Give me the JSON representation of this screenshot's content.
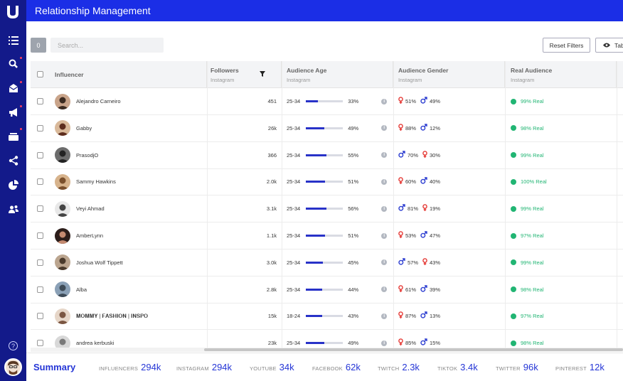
{
  "app": {
    "title": "Relationship Management"
  },
  "toolbar": {
    "count": "0",
    "search_placeholder": "Search...",
    "reset_label": "Reset Filters",
    "table_label": "Tab"
  },
  "columns": {
    "influencer": "Influencer",
    "followers": "Followers",
    "followers_sub": "Instagram",
    "age": "Audience Age",
    "age_sub": "Instagram",
    "gender": "Audience Gender",
    "gender_sub": "Instagram",
    "real": "Real Audience",
    "real_sub": "Instagram"
  },
  "rows": [
    {
      "name": "Alejandro Carneiro",
      "followers": "451",
      "age_range": "25-34",
      "age_pct": "33%",
      "age_value": 33,
      "g1": "female",
      "g1_pct": "51%",
      "g2": "male",
      "g2_pct": "49%",
      "real": "99% Real"
    },
    {
      "name": "Gabby",
      "followers": "26k",
      "age_range": "25-34",
      "age_pct": "49%",
      "age_value": 49,
      "g1": "female",
      "g1_pct": "88%",
      "g2": "male",
      "g2_pct": "12%",
      "real": "98% Real"
    },
    {
      "name": "PrasodjO",
      "followers": "366",
      "age_range": "25-34",
      "age_pct": "55%",
      "age_value": 55,
      "g1": "male",
      "g1_pct": "70%",
      "g2": "female",
      "g2_pct": "30%",
      "real": "99% Real"
    },
    {
      "name": "Sammy Hawkins",
      "followers": "2.0k",
      "age_range": "25-34",
      "age_pct": "51%",
      "age_value": 51,
      "g1": "female",
      "g1_pct": "60%",
      "g2": "male",
      "g2_pct": "40%",
      "real": "100% Real"
    },
    {
      "name": "Veyi Ahmad",
      "followers": "3.1k",
      "age_range": "25-34",
      "age_pct": "56%",
      "age_value": 56,
      "g1": "male",
      "g1_pct": "81%",
      "g2": "female",
      "g2_pct": "19%",
      "real": "99% Real"
    },
    {
      "name": "AmberLynn",
      "followers": "1.1k",
      "age_range": "25-34",
      "age_pct": "51%",
      "age_value": 51,
      "g1": "female",
      "g1_pct": "53%",
      "g2": "male",
      "g2_pct": "47%",
      "real": "97% Real"
    },
    {
      "name": "Joshua Wolf Tippett",
      "followers": "3.0k",
      "age_range": "25-34",
      "age_pct": "45%",
      "age_value": 45,
      "g1": "male",
      "g1_pct": "57%",
      "g2": "female",
      "g2_pct": "43%",
      "real": "99% Real"
    },
    {
      "name": "Alba",
      "followers": "2.8k",
      "age_range": "25-34",
      "age_pct": "44%",
      "age_value": 44,
      "g1": "female",
      "g1_pct": "61%",
      "g2": "male",
      "g2_pct": "39%",
      "real": "98% Real"
    },
    {
      "name": "𝐌𝐎𝐌𝐌𝐘 | 𝐅𝐀𝐒𝐇𝐈𝐎𝐍 | 𝐈𝐍𝐒𝐏𝐎",
      "followers": "15k",
      "age_range": "18-24",
      "age_pct": "43%",
      "age_value": 43,
      "g1": "female",
      "g1_pct": "87%",
      "g2": "male",
      "g2_pct": "13%",
      "real": "97% Real"
    },
    {
      "name": "andrea kerbuski",
      "followers": "23k",
      "age_range": "25-34",
      "age_pct": "49%",
      "age_value": 49,
      "g1": "female",
      "g1_pct": "85%",
      "g2": "male",
      "g2_pct": "15%",
      "real": "98% Real"
    }
  ],
  "summary": {
    "title": "Summary",
    "stats": [
      {
        "label": "INFLUENCERS",
        "value": "294k"
      },
      {
        "label": "INSTAGRAM",
        "value": "294k"
      },
      {
        "label": "YOUTUBE",
        "value": "34k"
      },
      {
        "label": "FACEBOOK",
        "value": "62k"
      },
      {
        "label": "TWITCH",
        "value": "2.3k"
      },
      {
        "label": "TIKTOK",
        "value": "3.4k"
      },
      {
        "label": "TWITTER",
        "value": "96k"
      },
      {
        "label": "PINTEREST",
        "value": "12k"
      }
    ]
  },
  "colors": {
    "sidebar": "#131a8a",
    "topbar": "#1b2ee6",
    "accent": "#2435d6",
    "real": "#21b573",
    "female": "#e53935",
    "male": "#2e3fd1"
  },
  "icons": {
    "nav": [
      "list-icon",
      "search-icon",
      "inbox-icon",
      "megaphone-icon",
      "cards-icon",
      "share-icon",
      "pie-chart-icon",
      "people-icon"
    ]
  }
}
